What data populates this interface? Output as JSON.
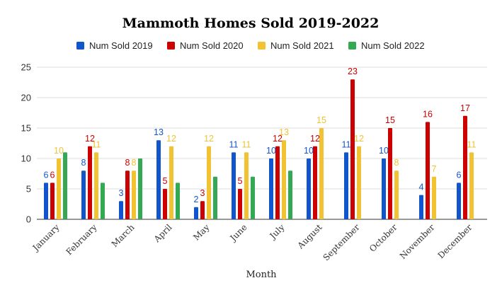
{
  "chart_data": {
    "type": "bar",
    "title": "Mammoth Homes Sold 2019-2022",
    "xlabel": "Month",
    "ylabel": "",
    "ylim": [
      0,
      25
    ],
    "yticks": [
      "0",
      "5",
      "10",
      "15",
      "20",
      "25"
    ],
    "grid": true,
    "legend_position": "top",
    "categories": [
      "January",
      "February",
      "March",
      "April",
      "May",
      "June",
      "July",
      "August",
      "September",
      "October",
      "November",
      "December"
    ],
    "series": [
      {
        "name": "Num Sold 2019",
        "color": "#1155cc",
        "values": [
          6,
          8,
          3,
          13,
          2,
          11,
          10,
          10,
          11,
          10,
          4,
          6
        ]
      },
      {
        "name": "Num Sold 2020",
        "color": "#cc0000",
        "values": [
          6,
          12,
          8,
          5,
          3,
          5,
          12,
          12,
          23,
          15,
          16,
          17
        ]
      },
      {
        "name": "Num Sold 2021",
        "color": "#f1c232",
        "values": [
          10,
          11,
          8,
          12,
          12,
          11,
          13,
          15,
          12,
          8,
          7,
          11
        ]
      },
      {
        "name": "Num Sold 2022",
        "color": "#34a853",
        "values": [
          11,
          6,
          10,
          6,
          7,
          7,
          8,
          null,
          null,
          null,
          null,
          null
        ]
      }
    ]
  }
}
